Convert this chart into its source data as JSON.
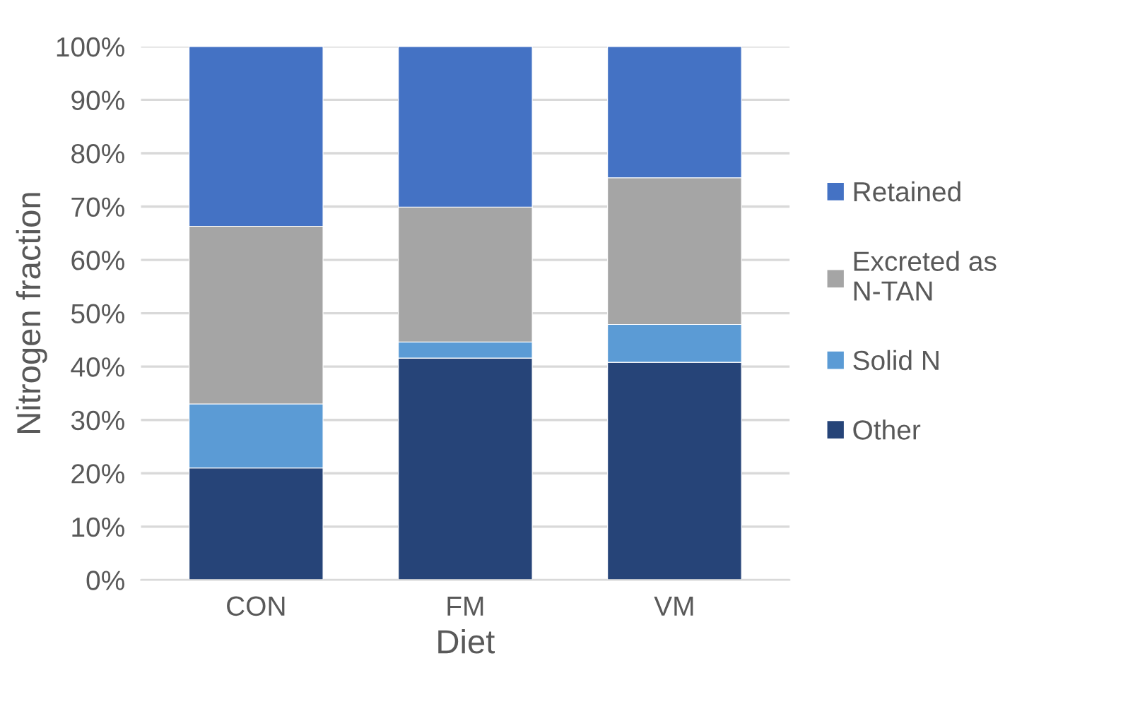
{
  "chart_data": {
    "type": "bar",
    "stacked": true,
    "xlabel": "Diet",
    "ylabel": "Nitrogen fraction",
    "categories": [
      "CON",
      "FM",
      "VM"
    ],
    "series": [
      {
        "name": "Other",
        "color": "#264478",
        "values": [
          21.0,
          41.6,
          40.8
        ]
      },
      {
        "name": "Solid N",
        "color": "#5b9bd5",
        "values": [
          12.0,
          3.0,
          7.1
        ]
      },
      {
        "name": "Excreted as\nN-TAN",
        "color": "#a5a5a5",
        "values": [
          33.3,
          25.3,
          27.5
        ]
      },
      {
        "name": "Retained",
        "color": "#4472c4",
        "values": [
          33.7,
          30.1,
          24.6
        ]
      }
    ],
    "ylim": [
      0,
      100
    ],
    "yticks": [
      {
        "value": 0,
        "label": "0%"
      },
      {
        "value": 10,
        "label": "10%"
      },
      {
        "value": 20,
        "label": "20%"
      },
      {
        "value": 30,
        "label": "30%"
      },
      {
        "value": 40,
        "label": "40%"
      },
      {
        "value": 50,
        "label": "50%"
      },
      {
        "value": 60,
        "label": "60%"
      },
      {
        "value": 70,
        "label": "70%"
      },
      {
        "value": 80,
        "label": "80%"
      },
      {
        "value": 90,
        "label": "90%"
      },
      {
        "value": 100,
        "label": "100%"
      }
    ],
    "grid": "y",
    "legend": "right"
  }
}
